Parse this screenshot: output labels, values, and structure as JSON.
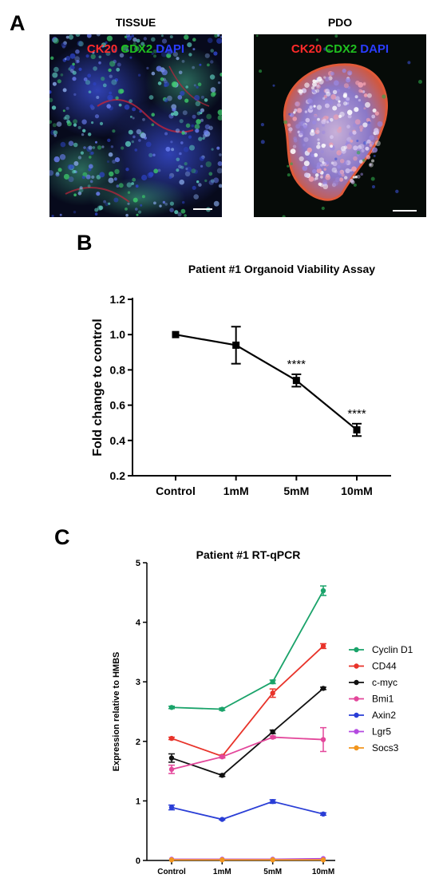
{
  "panels": {
    "a": {
      "letter": "A"
    },
    "b": {
      "letter": "B"
    },
    "c": {
      "letter": "C"
    }
  },
  "images": [
    {
      "title": "TISSUE",
      "stain_labels": [
        {
          "text": "CK20",
          "color": "#ff2a2a"
        },
        {
          "text": "CDX2",
          "color": "#1fbf1f"
        },
        {
          "text": "DAPI",
          "color": "#2a3cff"
        }
      ]
    },
    {
      "title": "PDO",
      "stain_labels": [
        {
          "text": "CK20",
          "color": "#ff2a2a"
        },
        {
          "text": "CDX2",
          "color": "#1fbf1f"
        },
        {
          "text": "DAPI",
          "color": "#2a3cff"
        }
      ]
    }
  ],
  "chart_data": [
    {
      "type": "line",
      "title": "Patient #1 Organoid Viability Assay",
      "xlabel": "",
      "ylabel": "Fold change to control",
      "categories": [
        "Control",
        "1mM",
        "5mM",
        "10mM"
      ],
      "ylim": [
        0.2,
        1.2
      ],
      "yticks": [
        "0.2",
        "0.4",
        "0.6",
        "0.8",
        "1.0",
        "1.2"
      ],
      "series": [
        {
          "values": [
            1.0,
            0.94,
            0.74,
            0.46
          ],
          "errors": [
            0.0,
            0.105,
            0.035,
            0.035
          ],
          "color": "#000000",
          "marker": "square"
        }
      ],
      "annotations": [
        "",
        "",
        "****",
        "****"
      ]
    },
    {
      "type": "line",
      "title": "Patient #1 RT-qPCR",
      "xlabel": "",
      "ylabel": "Expression relative to HMBS",
      "categories": [
        "Control",
        "1mM",
        "5mM",
        "10mM"
      ],
      "ylim": [
        0,
        5
      ],
      "yticks": [
        "0",
        "1",
        "2",
        "3",
        "4",
        "5"
      ],
      "legend": "right",
      "series": [
        {
          "name": "Cyclin D1",
          "color": "#1aa36a",
          "values": [
            2.57,
            2.54,
            3.0,
            4.53
          ],
          "errors": [
            0.02,
            0.02,
            0.03,
            0.08
          ]
        },
        {
          "name": "CD44",
          "color": "#e8332a",
          "values": [
            2.05,
            1.75,
            2.81,
            3.6
          ],
          "errors": [
            0.02,
            0.02,
            0.07,
            0.04
          ]
        },
        {
          "name": "c-myc",
          "color": "#111111",
          "values": [
            1.72,
            1.43,
            2.16,
            2.89
          ],
          "errors": [
            0.07,
            0.02,
            0.03,
            0.02
          ]
        },
        {
          "name": "Bmi1",
          "color": "#e3479b",
          "values": [
            1.53,
            1.74,
            2.07,
            2.03
          ],
          "errors": [
            0.07,
            0.02,
            0.02,
            0.2
          ]
        },
        {
          "name": "Axin2",
          "color": "#2a3ed6",
          "values": [
            0.89,
            0.69,
            0.99,
            0.78
          ],
          "errors": [
            0.04,
            0.01,
            0.03,
            0.02
          ]
        },
        {
          "name": "Lgr5",
          "color": "#b44ae0",
          "values": [
            0.02,
            0.02,
            0.02,
            0.03
          ],
          "errors": [
            0,
            0,
            0,
            0
          ]
        },
        {
          "name": "Socs3",
          "color": "#f2961e",
          "values": [
            0.01,
            0.01,
            0.01,
            0.01
          ],
          "errors": [
            0,
            0,
            0,
            0
          ]
        }
      ]
    }
  ]
}
